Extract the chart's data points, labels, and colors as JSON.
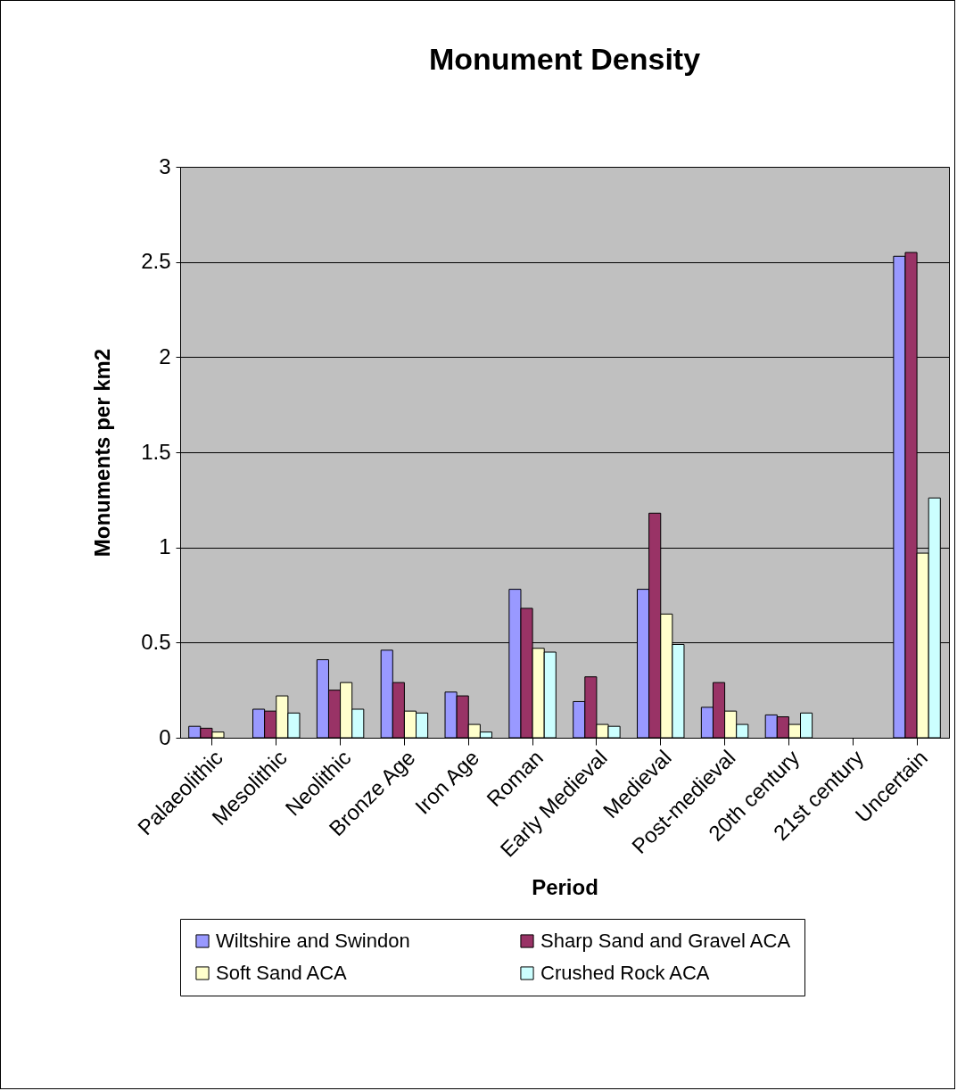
{
  "chart_data": {
    "type": "bar",
    "title": "Monument Density",
    "xlabel": "Period",
    "ylabel": "Monuments per km2",
    "categories": [
      "Palaeolithic",
      "Mesolithic",
      "Neolithic",
      "Bronze Age",
      "Iron Age",
      "Roman",
      "Early Medieval",
      "Medieval",
      "Post-medieval",
      "20th century",
      "21st century",
      "Uncertain"
    ],
    "series": [
      {
        "name": "Wiltshire and Swindon",
        "color": "#9999ff",
        "values": [
          0.06,
          0.15,
          0.41,
          0.46,
          0.24,
          0.78,
          0.19,
          0.78,
          0.16,
          0.12,
          null,
          2.53
        ]
      },
      {
        "name": "Sharp Sand and Gravel ACA",
        "color": "#993366",
        "values": [
          0.05,
          0.14,
          0.25,
          0.29,
          0.22,
          0.68,
          0.32,
          1.18,
          0.29,
          0.11,
          null,
          2.55
        ]
      },
      {
        "name": "Soft Sand ACA",
        "color": "#ffffcc",
        "values": [
          0.03,
          0.22,
          0.29,
          0.14,
          0.07,
          0.47,
          0.07,
          0.65,
          0.14,
          0.07,
          null,
          0.97
        ]
      },
      {
        "name": "Crushed Rock ACA",
        "color": "#ccffff",
        "values": [
          null,
          0.13,
          0.15,
          0.13,
          0.03,
          0.45,
          0.06,
          0.49,
          0.07,
          0.13,
          null,
          1.26
        ]
      }
    ],
    "ylim": [
      0,
      3
    ],
    "yticks": [
      0,
      0.5,
      1,
      1.5,
      2,
      2.5,
      3
    ],
    "grid": "y",
    "legend": "bottom"
  }
}
